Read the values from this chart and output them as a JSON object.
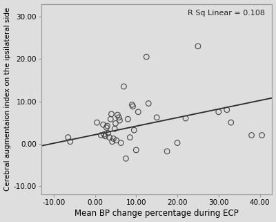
{
  "title": "",
  "xlabel": "Mean BP change percentage during ECP",
  "ylabel": "Cerebral augmentaion index on the ipsilateral side",
  "xlim": [
    -13,
    43
  ],
  "ylim": [
    -12,
    33
  ],
  "xticks": [
    -10,
    0,
    10,
    20,
    30,
    40
  ],
  "yticks": [
    -10,
    0,
    10,
    20,
    30
  ],
  "annotation": "R Sq Linear = 0.108",
  "background_color": "#dedede",
  "scatter_x": [
    -6.5,
    -6.0,
    0.5,
    1.5,
    2.0,
    2.2,
    2.5,
    2.8,
    3.0,
    3.2,
    3.5,
    3.8,
    4.0,
    4.2,
    4.5,
    4.8,
    5.0,
    5.2,
    5.5,
    5.8,
    6.0,
    6.3,
    7.0,
    7.5,
    8.0,
    8.5,
    9.0,
    9.2,
    9.5,
    10.0,
    10.5,
    12.5,
    13.0,
    15.0,
    17.5,
    20.0,
    22.0,
    25.0,
    30.0,
    32.0,
    33.0,
    38.0,
    40.5
  ],
  "scatter_y": [
    1.5,
    0.5,
    5.0,
    2.0,
    4.5,
    2.2,
    1.8,
    3.8,
    4.2,
    2.5,
    1.5,
    5.8,
    7.0,
    0.5,
    1.2,
    3.5,
    4.8,
    0.8,
    6.8,
    6.2,
    5.5,
    0.2,
    13.5,
    -3.5,
    5.8,
    1.5,
    9.2,
    8.8,
    3.2,
    -1.5,
    7.5,
    20.5,
    9.5,
    6.2,
    -1.8,
    0.2,
    6.0,
    23.0,
    7.5,
    8.0,
    5.0,
    2.0,
    2.0
  ],
  "line_x_start": -13,
  "line_x_end": 43,
  "line_y_start": -0.5,
  "line_y_end": 10.8,
  "line_color": "#2a2a2a",
  "marker_color": "none",
  "marker_edge_color": "#444444",
  "marker_size": 5.5,
  "xlabel_fontsize": 8.5,
  "ylabel_fontsize": 7.5,
  "annotation_fontsize": 8,
  "tick_fontsize": 7.5
}
